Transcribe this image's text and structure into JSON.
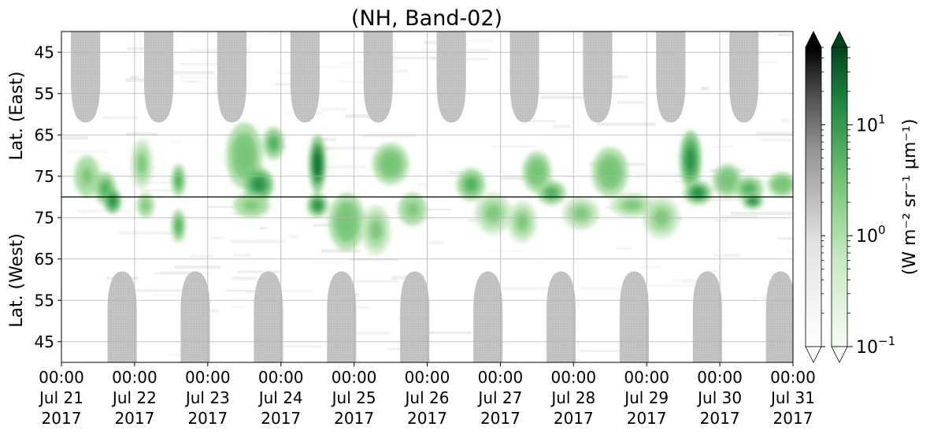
{
  "chart_data": {
    "type": "heatmap",
    "title": "(NH, Band-02)",
    "ylabel_top": "Lat. (East)",
    "ylabel_bottom": "Lat. (West)",
    "y_ticks_top": [
      "45",
      "55",
      "65",
      "75"
    ],
    "y_ticks_bottom": [
      "75",
      "65",
      "55",
      "45"
    ],
    "y_tick_values_top": [
      45,
      55,
      65,
      75
    ],
    "y_tick_values_bottom": [
      75,
      65,
      55,
      45
    ],
    "ylim_top": [
      40,
      80
    ],
    "ylim_bottom": [
      80,
      40
    ],
    "x_ticks": [
      {
        "time": "00:00",
        "day": "Jul 21",
        "year": "2017"
      },
      {
        "time": "00:00",
        "day": "Jul 22",
        "year": "2017"
      },
      {
        "time": "00:00",
        "day": "Jul 23",
        "year": "2017"
      },
      {
        "time": "00:00",
        "day": "Jul 24",
        "year": "2017"
      },
      {
        "time": "00:00",
        "day": "Jul 25",
        "year": "2017"
      },
      {
        "time": "00:00",
        "day": "Jul 26",
        "year": "2017"
      },
      {
        "time": "00:00",
        "day": "Jul 27",
        "year": "2017"
      },
      {
        "time": "00:00",
        "day": "Jul 28",
        "year": "2017"
      },
      {
        "time": "00:00",
        "day": "Jul 29",
        "year": "2017"
      },
      {
        "time": "00:00",
        "day": "Jul 30",
        "year": "2017"
      },
      {
        "time": "00:00",
        "day": "Jul 31",
        "year": "2017"
      }
    ],
    "xlim_days": [
      0,
      10
    ],
    "grid": true,
    "colorbar": {
      "label": "(W m⁻² sr⁻¹ μm⁻¹)",
      "scale": "log",
      "range": [
        0.1,
        50
      ],
      "ticks": [
        {
          "base": "10",
          "exp": "1",
          "value": 10
        },
        {
          "base": "10",
          "exp": "0",
          "value": 1
        },
        {
          "base": "10",
          "exp": "−1",
          "value": 0.1
        }
      ],
      "extend": "both",
      "cmaps": [
        "Greys",
        "Greens"
      ]
    },
    "dayside_mask": {
      "color": "#c0c0c0",
      "east_peaks_day": [
        0.33,
        1.33,
        2.33,
        3.33,
        4.33,
        5.33,
        6.33,
        7.33,
        8.33,
        9.33
      ],
      "east_reach_lat": 62,
      "west_peaks_day": [
        0.83,
        1.83,
        2.83,
        3.83,
        4.83,
        5.83,
        6.83,
        7.83,
        8.83,
        9.83
      ],
      "west_reach_lat": 62
    },
    "green_blobs": [
      {
        "day": 0.35,
        "side": "east",
        "lat": 75,
        "spread_lat": 5,
        "spread_day": 0.18,
        "level": 0.5
      },
      {
        "day": 0.6,
        "side": "east",
        "lat": 78,
        "spread_lat": 4,
        "spread_day": 0.15,
        "level": 0.7
      },
      {
        "day": 0.7,
        "side": "west",
        "lat": 79,
        "spread_lat": 3,
        "spread_day": 0.12,
        "level": 0.8
      },
      {
        "day": 1.1,
        "side": "east",
        "lat": 72,
        "spread_lat": 6,
        "spread_day": 0.15,
        "level": 0.4
      },
      {
        "day": 1.15,
        "side": "west",
        "lat": 78,
        "spread_lat": 3,
        "spread_day": 0.12,
        "level": 0.5
      },
      {
        "day": 1.6,
        "side": "east",
        "lat": 76,
        "spread_lat": 4,
        "spread_day": 0.1,
        "level": 0.65
      },
      {
        "day": 1.6,
        "side": "west",
        "lat": 73,
        "spread_lat": 4,
        "spread_day": 0.1,
        "level": 0.7
      },
      {
        "day": 2.5,
        "side": "east",
        "lat": 70,
        "spread_lat": 8,
        "spread_day": 0.25,
        "level": 0.55
      },
      {
        "day": 2.7,
        "side": "east",
        "lat": 77,
        "spread_lat": 4,
        "spread_day": 0.2,
        "level": 0.8
      },
      {
        "day": 2.9,
        "side": "east",
        "lat": 67,
        "spread_lat": 4,
        "spread_day": 0.15,
        "level": 0.7
      },
      {
        "day": 2.6,
        "side": "west",
        "lat": 78,
        "spread_lat": 3,
        "spread_day": 0.25,
        "level": 0.5
      },
      {
        "day": 3.5,
        "side": "east",
        "lat": 72,
        "spread_lat": 7,
        "spread_day": 0.12,
        "level": 0.95
      },
      {
        "day": 3.5,
        "side": "west",
        "lat": 78,
        "spread_lat": 3,
        "spread_day": 0.15,
        "level": 0.75
      },
      {
        "day": 3.9,
        "side": "west",
        "lat": 74,
        "spread_lat": 7,
        "spread_day": 0.25,
        "level": 0.55
      },
      {
        "day": 4.3,
        "side": "west",
        "lat": 72,
        "spread_lat": 6,
        "spread_day": 0.2,
        "level": 0.45
      },
      {
        "day": 4.5,
        "side": "east",
        "lat": 72,
        "spread_lat": 5,
        "spread_day": 0.25,
        "level": 0.55
      },
      {
        "day": 4.8,
        "side": "west",
        "lat": 77,
        "spread_lat": 4,
        "spread_day": 0.2,
        "level": 0.5
      },
      {
        "day": 5.6,
        "side": "east",
        "lat": 77,
        "spread_lat": 4,
        "spread_day": 0.2,
        "level": 0.6
      },
      {
        "day": 5.9,
        "side": "west",
        "lat": 76,
        "spread_lat": 5,
        "spread_day": 0.25,
        "level": 0.45
      },
      {
        "day": 6.3,
        "side": "west",
        "lat": 74,
        "spread_lat": 5,
        "spread_day": 0.2,
        "level": 0.4
      },
      {
        "day": 6.5,
        "side": "east",
        "lat": 74,
        "spread_lat": 5,
        "spread_day": 0.2,
        "level": 0.55
      },
      {
        "day": 6.7,
        "side": "east",
        "lat": 79,
        "spread_lat": 3,
        "spread_day": 0.2,
        "level": 0.6
      },
      {
        "day": 7.1,
        "side": "west",
        "lat": 76,
        "spread_lat": 4,
        "spread_day": 0.25,
        "level": 0.45
      },
      {
        "day": 7.5,
        "side": "east",
        "lat": 74,
        "spread_lat": 6,
        "spread_day": 0.25,
        "level": 0.55
      },
      {
        "day": 7.8,
        "side": "west",
        "lat": 78,
        "spread_lat": 3,
        "spread_day": 0.3,
        "level": 0.4
      },
      {
        "day": 8.2,
        "side": "west",
        "lat": 75,
        "spread_lat": 5,
        "spread_day": 0.25,
        "level": 0.4
      },
      {
        "day": 8.6,
        "side": "east",
        "lat": 71,
        "spread_lat": 7,
        "spread_day": 0.15,
        "level": 0.85
      },
      {
        "day": 8.7,
        "side": "east",
        "lat": 79,
        "spread_lat": 3,
        "spread_day": 0.2,
        "level": 0.75
      },
      {
        "day": 9.1,
        "side": "east",
        "lat": 76,
        "spread_lat": 4,
        "spread_day": 0.2,
        "level": 0.55
      },
      {
        "day": 9.4,
        "side": "east",
        "lat": 78,
        "spread_lat": 3,
        "spread_day": 0.2,
        "level": 0.6
      },
      {
        "day": 9.45,
        "side": "west",
        "lat": 79,
        "spread_lat": 2,
        "spread_day": 0.15,
        "level": 0.75
      },
      {
        "day": 9.85,
        "side": "east",
        "lat": 77,
        "spread_lat": 3,
        "spread_day": 0.2,
        "level": 0.55
      }
    ]
  }
}
